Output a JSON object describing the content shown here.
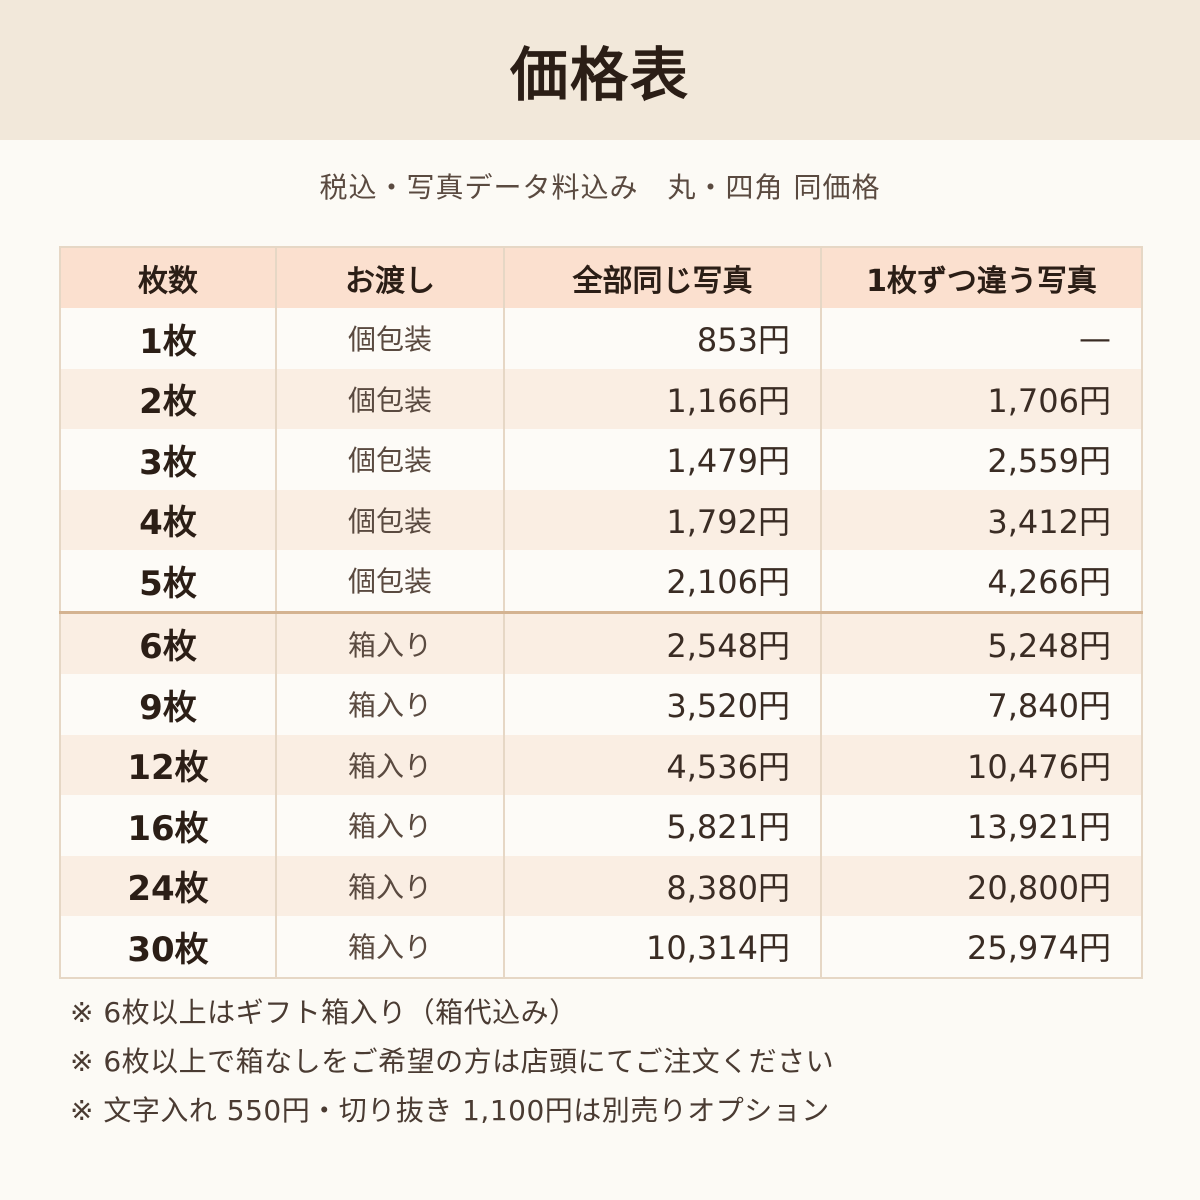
{
  "header": {
    "title": "価格表"
  },
  "subtitle": "税込・写真データ料込み　丸・四角 同価格",
  "table": {
    "headers": [
      "枚数",
      "お渡し",
      "全部同じ写真",
      "1枚ずつ違う写真"
    ],
    "rows": [
      {
        "qty": "1枚",
        "packaging": "個包装",
        "same_price": "853円",
        "different_price": "—"
      },
      {
        "qty": "2枚",
        "packaging": "個包装",
        "same_price": "1,166円",
        "different_price": "1,706円"
      },
      {
        "qty": "3枚",
        "packaging": "個包装",
        "same_price": "1,479円",
        "different_price": "2,559円"
      },
      {
        "qty": "4枚",
        "packaging": "個包装",
        "same_price": "1,792円",
        "different_price": "3,412円"
      },
      {
        "qty": "5枚",
        "packaging": "個包装",
        "same_price": "2,106円",
        "different_price": "4,266円"
      },
      {
        "qty": "6枚",
        "packaging": "箱入り",
        "same_price": "2,548円",
        "different_price": "5,248円"
      },
      {
        "qty": "9枚",
        "packaging": "箱入り",
        "same_price": "3,520円",
        "different_price": "7,840円"
      },
      {
        "qty": "12枚",
        "packaging": "箱入り",
        "same_price": "4,536円",
        "different_price": "10,476円"
      },
      {
        "qty": "16枚",
        "packaging": "箱入り",
        "same_price": "5,821円",
        "different_price": "13,921円"
      },
      {
        "qty": "24枚",
        "packaging": "箱入り",
        "same_price": "8,380円",
        "different_price": "20,800円"
      },
      {
        "qty": "30枚",
        "packaging": "箱入り",
        "same_price": "10,314円",
        "different_price": "25,974円"
      }
    ]
  },
  "notes": [
    "※ 6枚以上はギフト箱入り（箱代込み）",
    "※ 6枚以上で箱なしをご希望の方は店頭にてご注文ください",
    "※ 文字入れ 550円・切り抜き 1,100円は別売りオプション"
  ],
  "colors": {
    "header_band": "#f2e8da",
    "table_header": "#fbe0cf",
    "row_alt": "#faeee3",
    "group_divider": "#d4b391"
  }
}
